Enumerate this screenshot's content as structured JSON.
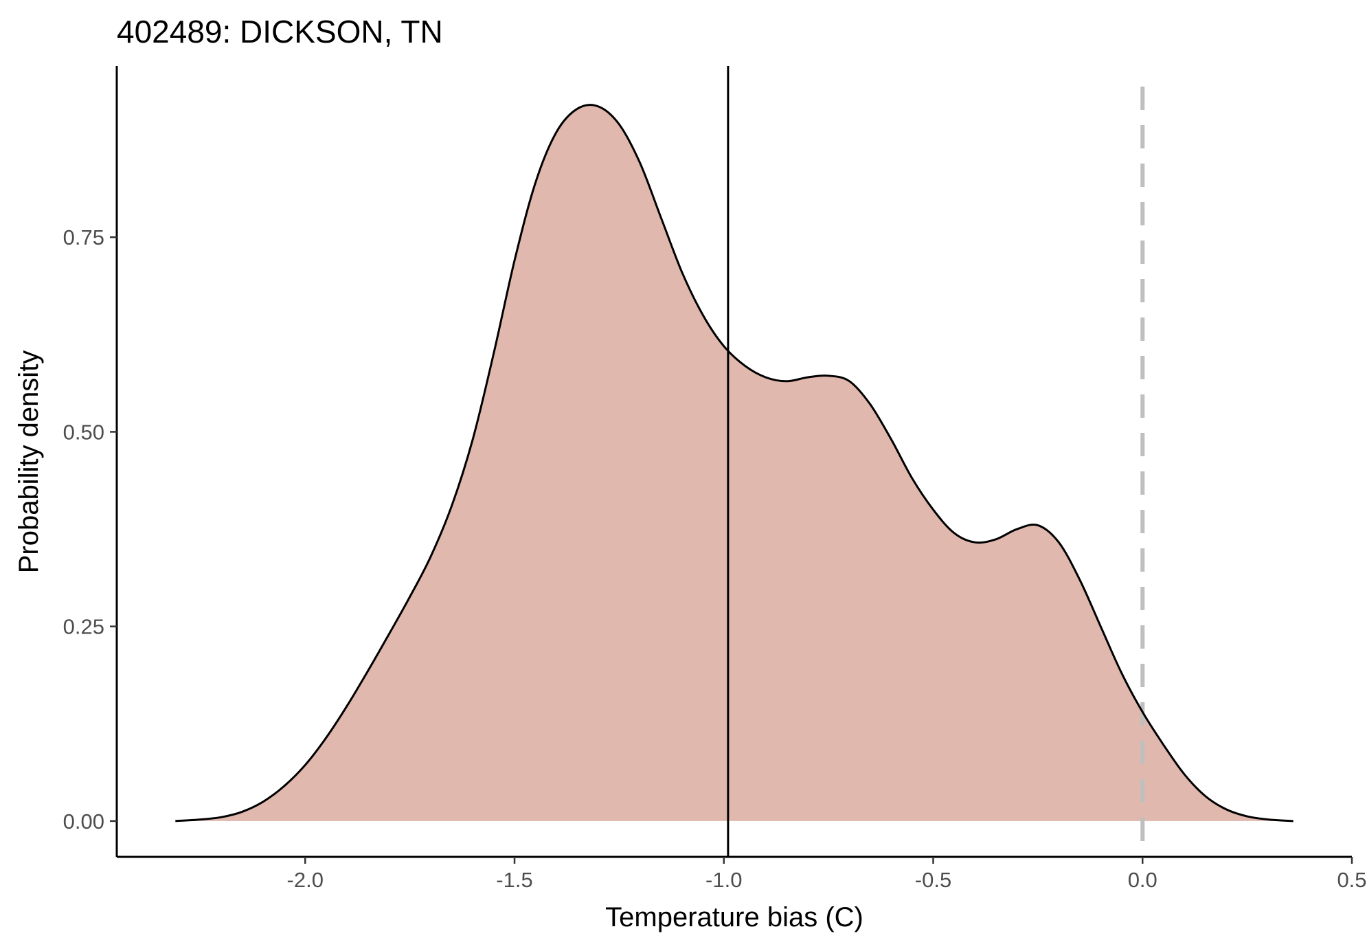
{
  "chart_data": {
    "type": "area",
    "title": "402489: DICKSON, TN",
    "xlabel": "Temperature bias (C)",
    "ylabel": "Probability density",
    "xlim": [
      -2.45,
      0.5
    ],
    "ylim": [
      -0.046,
      0.97
    ],
    "x_ticks": [
      -2.0,
      -1.5,
      -1.0,
      -0.5,
      0.0,
      0.5
    ],
    "x_tick_labels": [
      "-2.0",
      "-1.5",
      "-1.0",
      "-0.5",
      "0.0",
      "0.5"
    ],
    "y_ticks": [
      0.0,
      0.25,
      0.5,
      0.75
    ],
    "y_tick_labels": [
      "0.00",
      "0.25",
      "0.50",
      "0.75"
    ],
    "grid": false,
    "fill_color": "#e0b8ae",
    "line_color": "#000000",
    "reference_line_color": "#bfbfbf",
    "vertical_lines": [
      {
        "x": -0.99,
        "style": "solid"
      },
      {
        "x": 0.0,
        "style": "dashed"
      }
    ],
    "series": [
      {
        "x": [
          -2.31,
          -2.25,
          -2.2,
          -2.15,
          -2.1,
          -2.05,
          -2.0,
          -1.95,
          -1.9,
          -1.85,
          -1.8,
          -1.75,
          -1.7,
          -1.65,
          -1.6,
          -1.55,
          -1.5,
          -1.45,
          -1.4,
          -1.35,
          -1.3,
          -1.25,
          -1.2,
          -1.15,
          -1.1,
          -1.05,
          -1.0,
          -0.95,
          -0.9,
          -0.85,
          -0.8,
          -0.75,
          -0.7,
          -0.65,
          -0.6,
          -0.55,
          -0.5,
          -0.45,
          -0.4,
          -0.35,
          -0.3,
          -0.25,
          -0.2,
          -0.15,
          -0.1,
          -0.05,
          0.0,
          0.05,
          0.1,
          0.15,
          0.2,
          0.25,
          0.3,
          0.36
        ],
        "y": [
          0.0,
          0.002,
          0.005,
          0.012,
          0.025,
          0.045,
          0.072,
          0.107,
          0.148,
          0.193,
          0.24,
          0.288,
          0.34,
          0.405,
          0.49,
          0.6,
          0.72,
          0.82,
          0.885,
          0.915,
          0.918,
          0.895,
          0.845,
          0.775,
          0.705,
          0.65,
          0.61,
          0.585,
          0.57,
          0.565,
          0.57,
          0.572,
          0.565,
          0.535,
          0.49,
          0.44,
          0.4,
          0.37,
          0.358,
          0.362,
          0.375,
          0.38,
          0.358,
          0.31,
          0.25,
          0.19,
          0.14,
          0.098,
          0.06,
          0.032,
          0.015,
          0.006,
          0.002,
          0.0
        ]
      }
    ]
  }
}
